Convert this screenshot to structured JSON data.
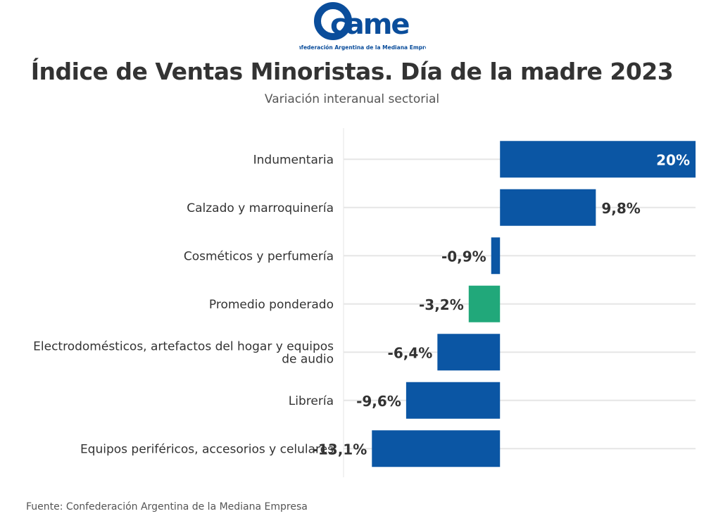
{
  "logo": {
    "text": "came",
    "caption": "Confederación Argentina de la Mediana Empresa",
    "color": "#0a4d9b"
  },
  "header": {
    "title": "Índice de Ventas Minoristas. Día de la madre 2023",
    "subtitle": "Variación interanual sectorial"
  },
  "footer": {
    "source": "Fuente: Confederación Argentina de la Mediana Empresa"
  },
  "chart_data": {
    "type": "bar",
    "orientation": "horizontal",
    "title": "Índice de Ventas Minoristas. Día de la madre 2023",
    "subtitle": "Variación interanual sectorial",
    "xlabel": "",
    "ylabel": "",
    "unit": "%",
    "xlim": [
      -16,
      20
    ],
    "grid": true,
    "categories": [
      "Indumentaria",
      "Calzado y marroquinería",
      "Cosméticos y perfumería",
      "Promedio ponderado",
      "Electrodomésticos, artefactos del hogar y equipos de audio",
      "Librería",
      "Equipos periféricos, accesorios y celulares"
    ],
    "category_lines": [
      [
        "Indumentaria"
      ],
      [
        "Calzado y marroquinería"
      ],
      [
        "Cosméticos y perfumería"
      ],
      [
        "Promedio ponderado"
      ],
      [
        "Electrodomésticos, artefactos del hogar y equipos",
        "de audio"
      ],
      [
        "Librería"
      ],
      [
        "Equipos periféricos, accesorios y celulares"
      ]
    ],
    "values": [
      20,
      9.8,
      -0.9,
      -3.2,
      -6.4,
      -9.6,
      -13.1
    ],
    "value_labels": [
      "20%",
      "9,8%",
      "-0,9%",
      "-3,2%",
      "-6,4%",
      "-9,6%",
      "-13,1%"
    ],
    "colors": [
      "#0b56a4",
      "#0b56a4",
      "#0b56a4",
      "#21a87a",
      "#0b56a4",
      "#0b56a4",
      "#0b56a4"
    ],
    "grid_color": "#e6e6e6"
  }
}
